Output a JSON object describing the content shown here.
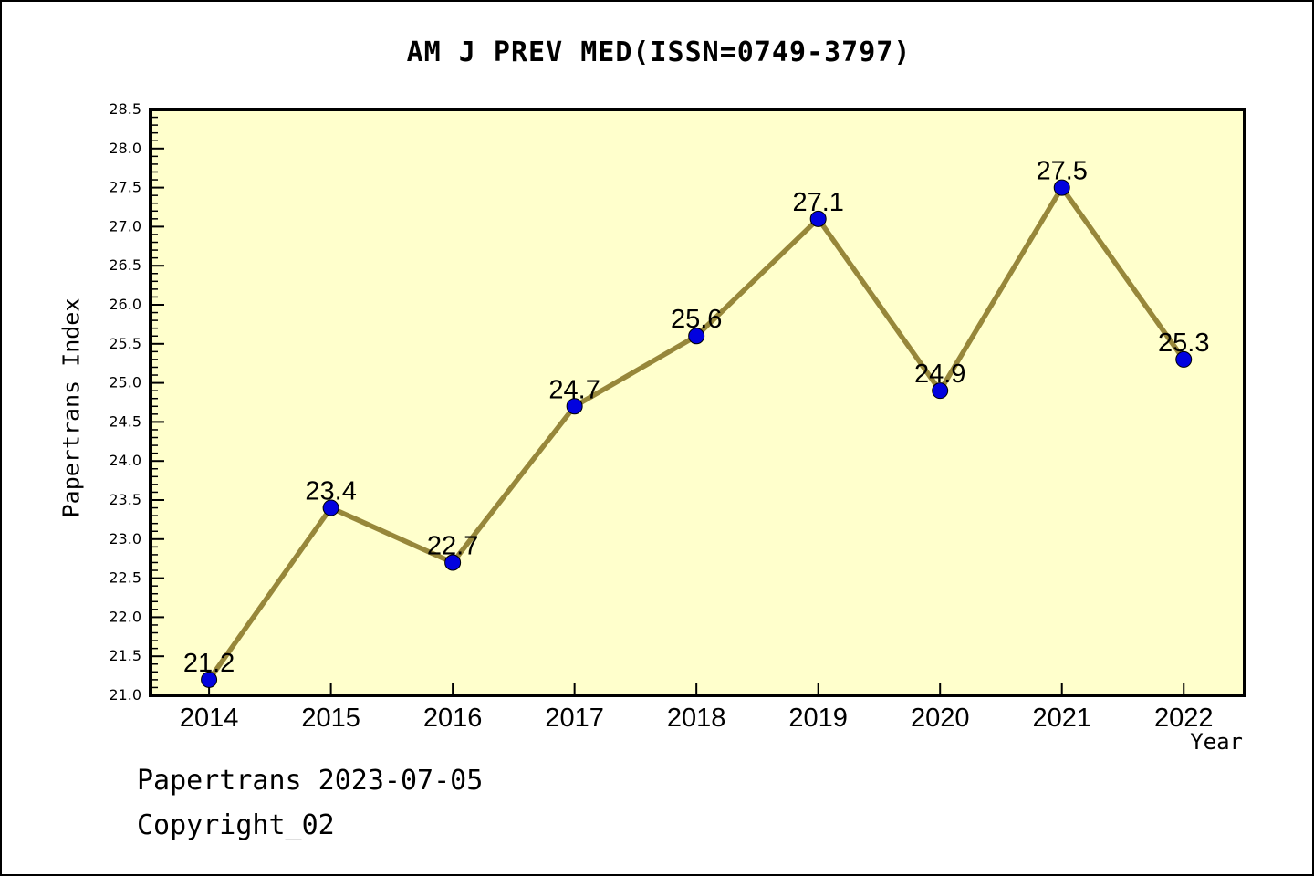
{
  "chart_data": {
    "type": "line",
    "title": "AM J PREV MED(ISSN=0749-3797)",
    "xlabel": "Year",
    "ylabel": "Papertrans Index",
    "x": [
      2014,
      2015,
      2016,
      2017,
      2018,
      2019,
      2020,
      2021,
      2022
    ],
    "values": [
      21.2,
      23.4,
      22.7,
      24.7,
      25.6,
      27.1,
      24.9,
      27.5,
      25.3
    ],
    "point_labels": [
      "21.2",
      "23.4",
      "22.7",
      "24.7",
      "25.6",
      "27.1",
      "24.9",
      "27.5",
      "25.3"
    ],
    "ylim": [
      21.0,
      28.5
    ],
    "y_major_step": 0.5,
    "y_minor_step": 0.1,
    "xlim_pad": 0.48,
    "grid": false,
    "legend": "none",
    "colors": {
      "plot_bg": "#FFFFCC",
      "line": "#97873A",
      "marker_fill": "#0202DF",
      "marker_edge": "#000000",
      "frame": "#000000",
      "text": "#000000"
    }
  },
  "footer": {
    "line1": "Papertrans 2023-07-05",
    "line2": "Copyright_02"
  }
}
